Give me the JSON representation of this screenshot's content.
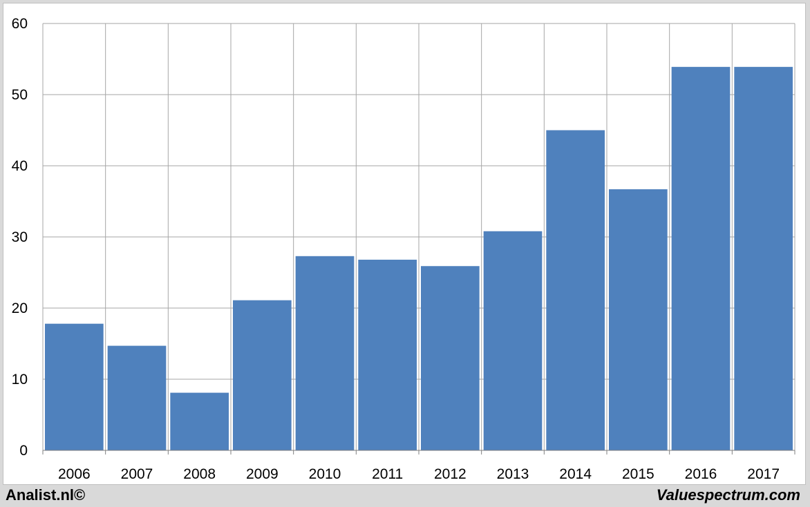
{
  "chart_data": {
    "type": "bar",
    "title": "",
    "xlabel": "",
    "ylabel": "",
    "categories": [
      "2006",
      "2007",
      "2008",
      "2009",
      "2010",
      "2011",
      "2012",
      "2013",
      "2014",
      "2015",
      "2016",
      "2017"
    ],
    "values": [
      17.8,
      14.7,
      8.1,
      21.1,
      27.3,
      26.8,
      25.9,
      30.8,
      45.0,
      36.7,
      53.9,
      53.9
    ],
    "ylim": [
      0,
      60
    ],
    "yticks": [
      "0",
      "10",
      "20",
      "30",
      "40",
      "50",
      "60"
    ],
    "grid": true,
    "legend": "none",
    "bar_color": "#4f81bd",
    "grid_color": "#a6a6a6"
  },
  "footer": {
    "left_text": "Analist.nl©",
    "right_text": "Valuespectrum.com"
  }
}
